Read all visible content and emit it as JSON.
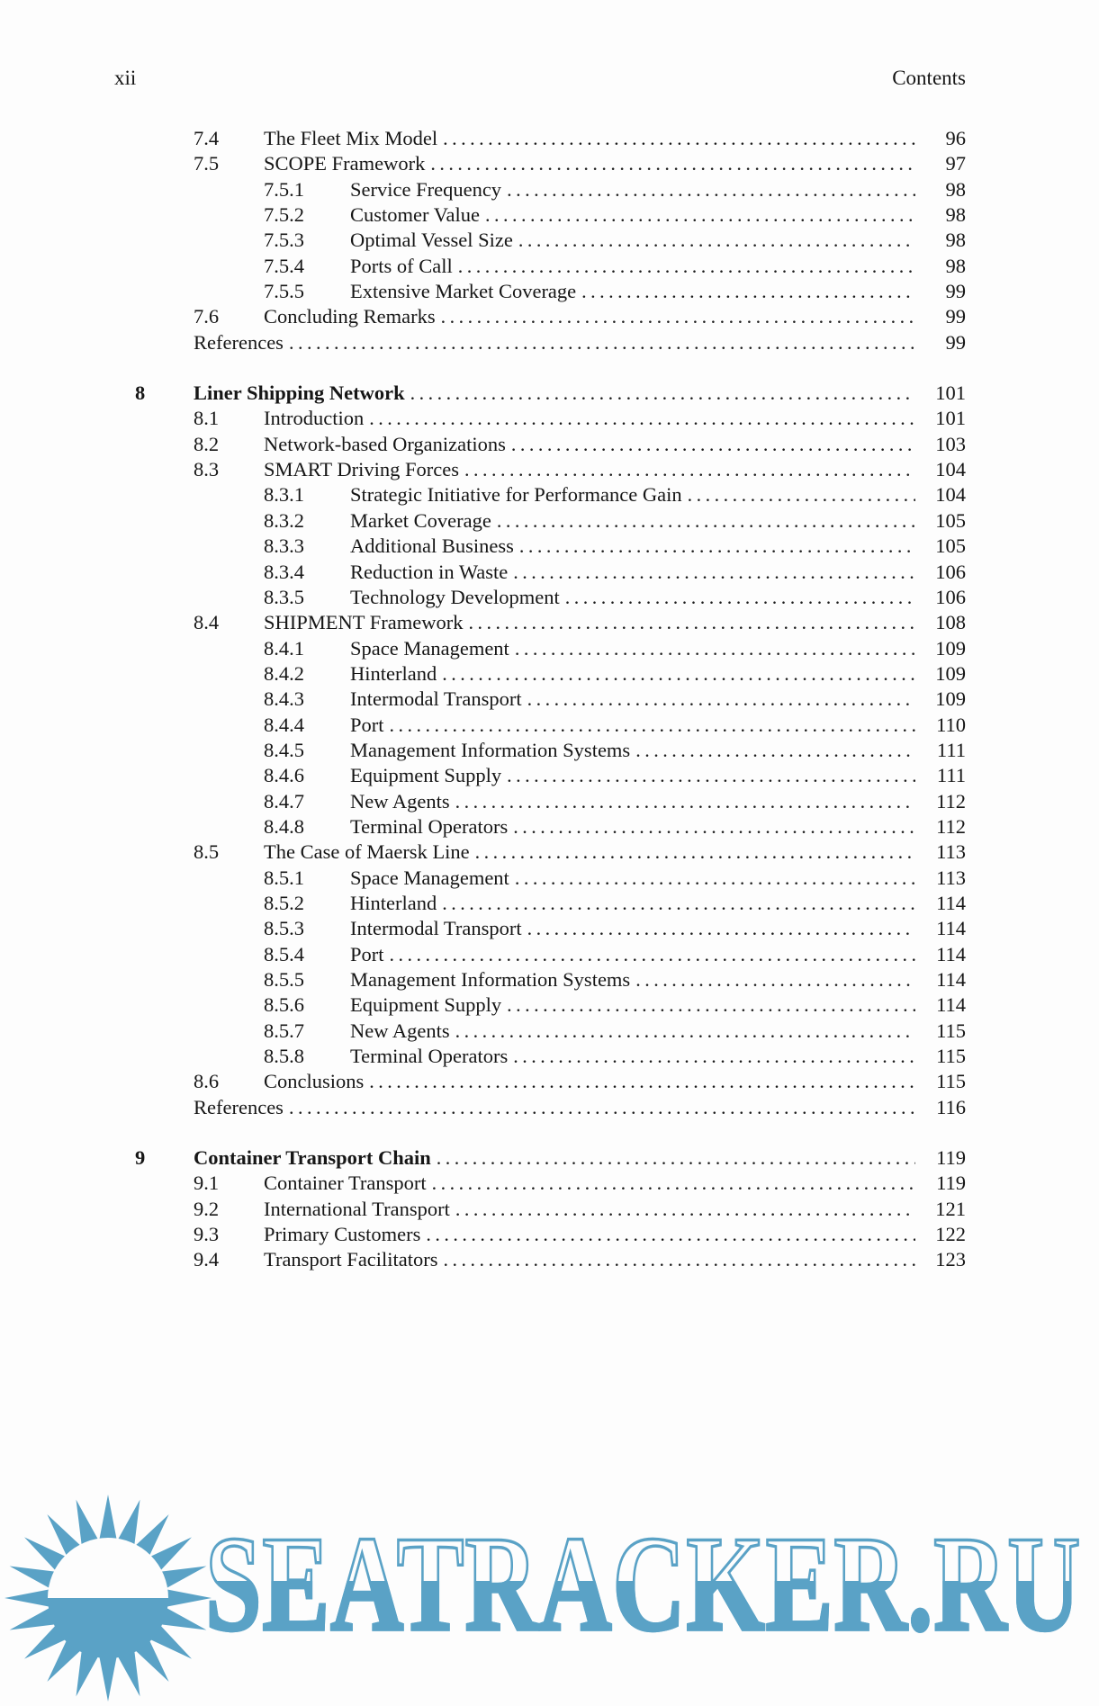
{
  "header": {
    "page_label": "xii",
    "title": "Contents"
  },
  "watermark": {
    "text": "SEATRACKER.RU",
    "color": "#5aa2c6"
  },
  "toc": {
    "blocks": [
      {
        "rows": [
          {
            "level": "section",
            "number": "7.4",
            "title": "The Fleet Mix Model",
            "page": "96"
          },
          {
            "level": "section",
            "number": "7.5",
            "title": "SCOPE Framework",
            "page": "97"
          },
          {
            "level": "subsection",
            "number": "7.5.1",
            "title": "Service Frequency",
            "page": "98"
          },
          {
            "level": "subsection",
            "number": "7.5.2",
            "title": "Customer Value",
            "page": "98"
          },
          {
            "level": "subsection",
            "number": "7.5.3",
            "title": "Optimal Vessel Size",
            "page": "98"
          },
          {
            "level": "subsection",
            "number": "7.5.4",
            "title": "Ports of Call",
            "page": "98"
          },
          {
            "level": "subsection",
            "number": "7.5.5",
            "title": "Extensive Market Coverage",
            "page": "99"
          },
          {
            "level": "section",
            "number": "7.6",
            "title": "Concluding Remarks",
            "page": "99"
          },
          {
            "level": "plain",
            "number": "",
            "title": "References",
            "page": "99"
          }
        ]
      },
      {
        "rows": [
          {
            "level": "chapter",
            "number": "8",
            "title": "Liner Shipping Network",
            "page": "101"
          },
          {
            "level": "section",
            "number": "8.1",
            "title": "Introduction",
            "page": "101"
          },
          {
            "level": "section",
            "number": "8.2",
            "title": "Network-based Organizations",
            "page": "103"
          },
          {
            "level": "section",
            "number": "8.3",
            "title": "SMART Driving Forces",
            "page": "104"
          },
          {
            "level": "subsection",
            "number": "8.3.1",
            "title": "Strategic Initiative for Performance Gain",
            "page": "104"
          },
          {
            "level": "subsection",
            "number": "8.3.2",
            "title": "Market Coverage",
            "page": "105"
          },
          {
            "level": "subsection",
            "number": "8.3.3",
            "title": "Additional Business",
            "page": "105"
          },
          {
            "level": "subsection",
            "number": "8.3.4",
            "title": "Reduction in Waste",
            "page": "106"
          },
          {
            "level": "subsection",
            "number": "8.3.5",
            "title": "Technology Development",
            "page": "106"
          },
          {
            "level": "section",
            "number": "8.4",
            "title": "SHIPMENT Framework",
            "page": "108"
          },
          {
            "level": "subsection",
            "number": "8.4.1",
            "title": "Space Management",
            "page": "109"
          },
          {
            "level": "subsection",
            "number": "8.4.2",
            "title": "Hinterland",
            "page": "109"
          },
          {
            "level": "subsection",
            "number": "8.4.3",
            "title": "Intermodal Transport",
            "page": "109"
          },
          {
            "level": "subsection",
            "number": "8.4.4",
            "title": "Port",
            "page": "110"
          },
          {
            "level": "subsection",
            "number": "8.4.5",
            "title": "Management Information Systems",
            "page": "111"
          },
          {
            "level": "subsection",
            "number": "8.4.6",
            "title": "Equipment Supply",
            "page": "111"
          },
          {
            "level": "subsection",
            "number": "8.4.7",
            "title": "New Agents",
            "page": "112"
          },
          {
            "level": "subsection",
            "number": "8.4.8",
            "title": "Terminal Operators",
            "page": "112"
          },
          {
            "level": "section",
            "number": "8.5",
            "title": "The Case of Maersk Line",
            "page": "113"
          },
          {
            "level": "subsection",
            "number": "8.5.1",
            "title": "Space Management",
            "page": "113"
          },
          {
            "level": "subsection",
            "number": "8.5.2",
            "title": "Hinterland",
            "page": "114"
          },
          {
            "level": "subsection",
            "number": "8.5.3",
            "title": "Intermodal Transport",
            "page": "114"
          },
          {
            "level": "subsection",
            "number": "8.5.4",
            "title": "Port",
            "page": "114"
          },
          {
            "level": "subsection",
            "number": "8.5.5",
            "title": "Management Information Systems",
            "page": "114"
          },
          {
            "level": "subsection",
            "number": "8.5.6",
            "title": "Equipment Supply",
            "page": "114"
          },
          {
            "level": "subsection",
            "number": "8.5.7",
            "title": "New Agents",
            "page": "115"
          },
          {
            "level": "subsection",
            "number": "8.5.8",
            "title": "Terminal Operators",
            "page": "115"
          },
          {
            "level": "section",
            "number": "8.6",
            "title": "Conclusions",
            "page": "115"
          },
          {
            "level": "plain",
            "number": "",
            "title": "References",
            "page": "116"
          }
        ]
      },
      {
        "rows": [
          {
            "level": "chapter",
            "number": "9",
            "title": "Container Transport Chain",
            "page": "119"
          },
          {
            "level": "section",
            "number": "9.1",
            "title": "Container Transport",
            "page": "119"
          },
          {
            "level": "section",
            "number": "9.2",
            "title": "International Transport",
            "page": "121"
          },
          {
            "level": "section",
            "number": "9.3",
            "title": "Primary Customers",
            "page": "122"
          },
          {
            "level": "section",
            "number": "9.4",
            "title": "Transport Facilitators",
            "page": "123"
          }
        ]
      }
    ]
  }
}
